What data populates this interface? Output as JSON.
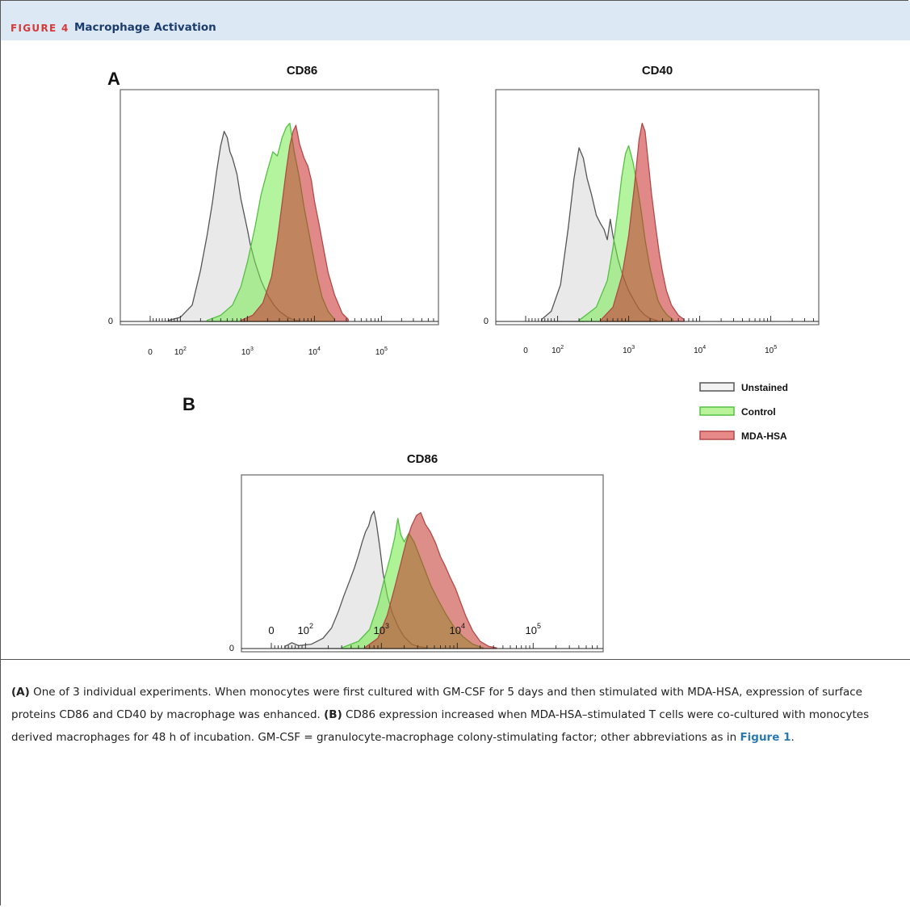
{
  "header": {
    "figure_label": "FIGURE 4",
    "figure_title": "Macrophage Activation"
  },
  "panels": {
    "a": {
      "label": "A"
    },
    "b": {
      "label": "B"
    }
  },
  "legend": {
    "items": [
      {
        "name": "Unstained",
        "fill": "#f2f2f2",
        "stroke": "#555555"
      },
      {
        "name": "Control",
        "fill": "#b8f39a",
        "stroke": "#55c043"
      },
      {
        "name": "MDA-HSA",
        "fill": "#e88a8a",
        "stroke": "#b44848"
      }
    ]
  },
  "chart_data": [
    {
      "type": "area",
      "panel": "A",
      "title": "CD86",
      "x_scale": "log",
      "x_ticks": [
        "0",
        "10^2",
        "10^3",
        "10^4",
        "10^5"
      ],
      "y_ticks": [
        "0"
      ],
      "series": [
        {
          "name": "Unstained",
          "color": "#555555",
          "x": [
            60,
            100,
            150,
            200,
            250,
            300,
            350,
            400,
            450,
            500,
            550,
            600,
            700,
            800,
            900,
            1000,
            1100,
            1300,
            1600,
            2000,
            2500,
            3000,
            4000,
            5000,
            6000
          ],
          "y": [
            0.005,
            0.02,
            0.08,
            0.25,
            0.42,
            0.58,
            0.74,
            0.86,
            0.93,
            0.9,
            0.83,
            0.8,
            0.72,
            0.6,
            0.52,
            0.45,
            0.38,
            0.29,
            0.2,
            0.13,
            0.08,
            0.05,
            0.02,
            0.007,
            0.003
          ]
        },
        {
          "name": "Control",
          "color": "#55c043",
          "x": [
            250,
            400,
            600,
            800,
            1000,
            1300,
            1600,
            2000,
            2400,
            2800,
            3300,
            3800,
            4300,
            5000,
            6000,
            7000,
            8000,
            9500,
            11000,
            13000,
            16000,
            20000
          ],
          "y": [
            0.005,
            0.03,
            0.08,
            0.17,
            0.29,
            0.46,
            0.62,
            0.74,
            0.83,
            0.81,
            0.9,
            0.95,
            0.97,
            0.83,
            0.7,
            0.56,
            0.46,
            0.33,
            0.22,
            0.12,
            0.05,
            0.01
          ]
        },
        {
          "name": "MDA-HSA",
          "color": "#b44848",
          "x": [
            800,
            1200,
            1700,
            2300,
            2800,
            3300,
            3800,
            4300,
            4800,
            5300,
            6000,
            7000,
            8000,
            9000,
            10000,
            12000,
            14000,
            16000,
            20000,
            26000,
            32000
          ],
          "y": [
            0.005,
            0.03,
            0.09,
            0.22,
            0.4,
            0.58,
            0.74,
            0.86,
            0.93,
            0.96,
            0.87,
            0.8,
            0.76,
            0.69,
            0.59,
            0.46,
            0.34,
            0.24,
            0.13,
            0.04,
            0.01
          ]
        }
      ]
    },
    {
      "type": "area",
      "panel": "A",
      "title": "CD40",
      "x_scale": "log",
      "x_ticks": [
        "0",
        "10^2",
        "10^3",
        "10^4",
        "10^5"
      ],
      "y_ticks": [
        "0"
      ],
      "series": [
        {
          "name": "Unstained",
          "color": "#555555",
          "x": [
            50,
            80,
            110,
            140,
            170,
            200,
            230,
            260,
            300,
            350,
            400,
            450,
            500,
            550,
            600,
            700,
            800,
            900,
            1000,
            1200,
            1400,
            1700,
            2000,
            2500
          ],
          "y": [
            0.01,
            0.05,
            0.18,
            0.45,
            0.7,
            0.85,
            0.8,
            0.7,
            0.62,
            0.52,
            0.48,
            0.45,
            0.4,
            0.5,
            0.42,
            0.31,
            0.24,
            0.19,
            0.15,
            0.1,
            0.06,
            0.03,
            0.015,
            0.005
          ]
        },
        {
          "name": "Control",
          "color": "#55c043",
          "x": [
            200,
            350,
            500,
            600,
            700,
            800,
            900,
            1000,
            1150,
            1300,
            1500,
            1700,
            2000,
            2300,
            2600,
            3000,
            3500,
            4200
          ],
          "y": [
            0.005,
            0.07,
            0.2,
            0.36,
            0.54,
            0.71,
            0.82,
            0.86,
            0.78,
            0.68,
            0.54,
            0.4,
            0.26,
            0.17,
            0.1,
            0.06,
            0.03,
            0.01
          ]
        },
        {
          "name": "MDA-HSA",
          "color": "#b44848",
          "x": [
            400,
            600,
            800,
            1000,
            1200,
            1400,
            1550,
            1700,
            1900,
            2100,
            2400,
            2700,
            3000,
            3400,
            4000,
            5000,
            6000
          ],
          "y": [
            0.005,
            0.07,
            0.22,
            0.42,
            0.66,
            0.89,
            0.97,
            0.93,
            0.77,
            0.62,
            0.46,
            0.33,
            0.24,
            0.15,
            0.08,
            0.03,
            0.01
          ]
        }
      ]
    },
    {
      "type": "area",
      "panel": "B",
      "title": "CD86",
      "x_scale": "log",
      "x_ticks": [
        "0",
        "10^2",
        "10^3",
        "10^4",
        "10^5"
      ],
      "y_ticks": [
        "0"
      ],
      "series": [
        {
          "name": "Unstained",
          "color": "#555555",
          "x": [
            40,
            60,
            80,
            120,
            170,
            220,
            270,
            320,
            380,
            440,
            500,
            560,
            620,
            680,
            740,
            800,
            860,
            950,
            1050,
            1200,
            1400,
            1700,
            2000,
            2500,
            3000,
            4000
          ],
          "y": [
            0.015,
            0.04,
            0.02,
            0.03,
            0.07,
            0.14,
            0.25,
            0.36,
            0.46,
            0.55,
            0.64,
            0.73,
            0.8,
            0.84,
            0.91,
            0.94,
            0.86,
            0.7,
            0.52,
            0.36,
            0.24,
            0.14,
            0.08,
            0.03,
            0.015,
            0.005
          ]
        },
        {
          "name": "Control",
          "color": "#55c043",
          "x": [
            300,
            500,
            700,
            900,
            1100,
            1300,
            1500,
            1650,
            1800,
            2000,
            2300,
            2700,
            3200,
            3800,
            4500,
            5500,
            7000,
            9000,
            12000,
            16000,
            22000
          ],
          "y": [
            0.005,
            0.05,
            0.13,
            0.3,
            0.48,
            0.62,
            0.76,
            0.89,
            0.78,
            0.73,
            0.79,
            0.73,
            0.63,
            0.53,
            0.43,
            0.34,
            0.24,
            0.15,
            0.08,
            0.03,
            0.005
          ]
        },
        {
          "name": "MDA-HSA",
          "color": "#b44848",
          "x": [
            600,
            900,
            1200,
            1500,
            1800,
            2100,
            2500,
            2900,
            3300,
            3800,
            4400,
            5200,
            6000,
            7000,
            8000,
            9500,
            11000,
            13000,
            16000,
            20000,
            26000,
            33000
          ],
          "y": [
            0.005,
            0.07,
            0.23,
            0.42,
            0.58,
            0.72,
            0.84,
            0.91,
            0.93,
            0.85,
            0.8,
            0.72,
            0.63,
            0.56,
            0.49,
            0.41,
            0.32,
            0.22,
            0.12,
            0.05,
            0.015,
            0.005
          ]
        }
      ]
    }
  ],
  "caption": {
    "a_label": "(A)",
    "a_text": " One of 3 individual experiments. When monocytes were first cultured with GM-CSF for 5 days and then stimulated with MDA-HSA, expression of surface proteins CD86 and CD40 by macrophage was enhanced. ",
    "b_label": "(B)",
    "b_text": " CD86 expression increased when MDA-HSA–stimulated T cells were co-cultured with monocytes derived macrophages for 48 h of incubation. GM-CSF = granulocyte-macrophage colony-stimulating factor; other abbreviations as in ",
    "xref": "Figure 1",
    "end": "."
  }
}
